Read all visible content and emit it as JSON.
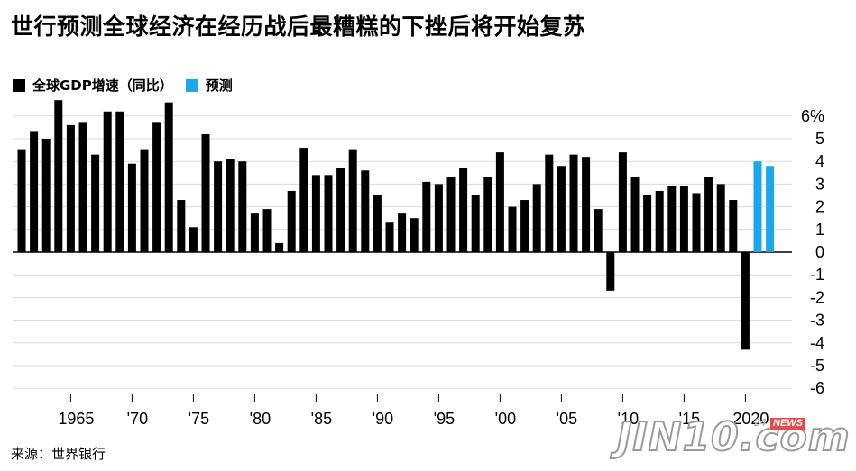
{
  "title": "世行预测全球经济在经历战后最糟糕的下挫后将开始复苏",
  "legend": [
    {
      "label": "全球GDP增速（同比）",
      "color": "#000000"
    },
    {
      "label": "预测",
      "color": "#1aa8e8"
    }
  ],
  "source": "来源：世界银行",
  "watermark": {
    "text": "JIN10.com",
    "badge": "NEWS",
    "prefix": "24"
  },
  "chart_data": {
    "type": "bar",
    "title": "世行预测全球经济在经历战后最糟糕的下挫后将开始复苏",
    "ylim": [
      -6.8,
      6.8
    ],
    "yticks": [
      {
        "v": 6,
        "label": "6%"
      },
      {
        "v": 5,
        "label": "5"
      },
      {
        "v": 4,
        "label": "4"
      },
      {
        "v": 3,
        "label": "3"
      },
      {
        "v": 2,
        "label": "2"
      },
      {
        "v": 1,
        "label": "1"
      },
      {
        "v": 0,
        "label": "0"
      },
      {
        "v": -1,
        "label": "-1"
      },
      {
        "v": -2,
        "label": "-2"
      },
      {
        "v": -3,
        "label": "-3"
      },
      {
        "v": -4,
        "label": "-4"
      },
      {
        "v": -5,
        "label": "-5"
      },
      {
        "v": -6,
        "label": "-6"
      }
    ],
    "xticks": [
      {
        "year": 1965,
        "label": "1965"
      },
      {
        "year": 1970,
        "label": "'70"
      },
      {
        "year": 1975,
        "label": "'75"
      },
      {
        "year": 1980,
        "label": "'80"
      },
      {
        "year": 1985,
        "label": "'85"
      },
      {
        "year": 1990,
        "label": "'90"
      },
      {
        "year": 1995,
        "label": "'95"
      },
      {
        "year": 2000,
        "label": "'00"
      },
      {
        "year": 2005,
        "label": "'05"
      },
      {
        "year": 2010,
        "label": "'10"
      },
      {
        "year": 2015,
        "label": "'15"
      },
      {
        "year": 2020,
        "label": "2020"
      }
    ],
    "grid": true,
    "legend_position": "top-left",
    "series": [
      {
        "name": "全球GDP增速（同比）",
        "color": "#000000",
        "points": [
          {
            "year": 1961,
            "value": 4.5
          },
          {
            "year": 1962,
            "value": 5.3
          },
          {
            "year": 1963,
            "value": 5.0
          },
          {
            "year": 1964,
            "value": 6.7
          },
          {
            "year": 1965,
            "value": 5.6
          },
          {
            "year": 1966,
            "value": 5.7
          },
          {
            "year": 1967,
            "value": 4.3
          },
          {
            "year": 1968,
            "value": 6.2
          },
          {
            "year": 1969,
            "value": 6.2
          },
          {
            "year": 1970,
            "value": 3.9
          },
          {
            "year": 1971,
            "value": 4.5
          },
          {
            "year": 1972,
            "value": 5.7
          },
          {
            "year": 1973,
            "value": 6.6
          },
          {
            "year": 1974,
            "value": 2.3
          },
          {
            "year": 1975,
            "value": 1.1
          },
          {
            "year": 1976,
            "value": 5.2
          },
          {
            "year": 1977,
            "value": 4.0
          },
          {
            "year": 1978,
            "value": 4.1
          },
          {
            "year": 1979,
            "value": 4.0
          },
          {
            "year": 1980,
            "value": 1.7
          },
          {
            "year": 1981,
            "value": 1.9
          },
          {
            "year": 1982,
            "value": 0.4
          },
          {
            "year": 1983,
            "value": 2.7
          },
          {
            "year": 1984,
            "value": 4.6
          },
          {
            "year": 1985,
            "value": 3.4
          },
          {
            "year": 1986,
            "value": 3.4
          },
          {
            "year": 1987,
            "value": 3.7
          },
          {
            "year": 1988,
            "value": 4.5
          },
          {
            "year": 1989,
            "value": 3.6
          },
          {
            "year": 1990,
            "value": 2.5
          },
          {
            "year": 1991,
            "value": 1.3
          },
          {
            "year": 1992,
            "value": 1.7
          },
          {
            "year": 1993,
            "value": 1.5
          },
          {
            "year": 1994,
            "value": 3.1
          },
          {
            "year": 1995,
            "value": 3.0
          },
          {
            "year": 1996,
            "value": 3.3
          },
          {
            "year": 1997,
            "value": 3.7
          },
          {
            "year": 1998,
            "value": 2.5
          },
          {
            "year": 1999,
            "value": 3.3
          },
          {
            "year": 2000,
            "value": 4.4
          },
          {
            "year": 2001,
            "value": 2.0
          },
          {
            "year": 2002,
            "value": 2.3
          },
          {
            "year": 2003,
            "value": 3.0
          },
          {
            "year": 2004,
            "value": 4.3
          },
          {
            "year": 2005,
            "value": 3.8
          },
          {
            "year": 2006,
            "value": 4.3
          },
          {
            "year": 2007,
            "value": 4.2
          },
          {
            "year": 2008,
            "value": 1.9
          },
          {
            "year": 2009,
            "value": -1.7
          },
          {
            "year": 2010,
            "value": 4.4
          },
          {
            "year": 2011,
            "value": 3.3
          },
          {
            "year": 2012,
            "value": 2.5
          },
          {
            "year": 2013,
            "value": 2.7
          },
          {
            "year": 2014,
            "value": 2.9
          },
          {
            "year": 2015,
            "value": 2.9
          },
          {
            "year": 2016,
            "value": 2.6
          },
          {
            "year": 2017,
            "value": 3.3
          },
          {
            "year": 2018,
            "value": 3.0
          },
          {
            "year": 2019,
            "value": 2.3
          },
          {
            "year": 2020,
            "value": -4.3
          }
        ]
      },
      {
        "name": "预测",
        "color": "#1aa8e8",
        "points": [
          {
            "year": 2021,
            "value": 4.0
          },
          {
            "year": 2022,
            "value": 3.8
          }
        ]
      }
    ]
  }
}
